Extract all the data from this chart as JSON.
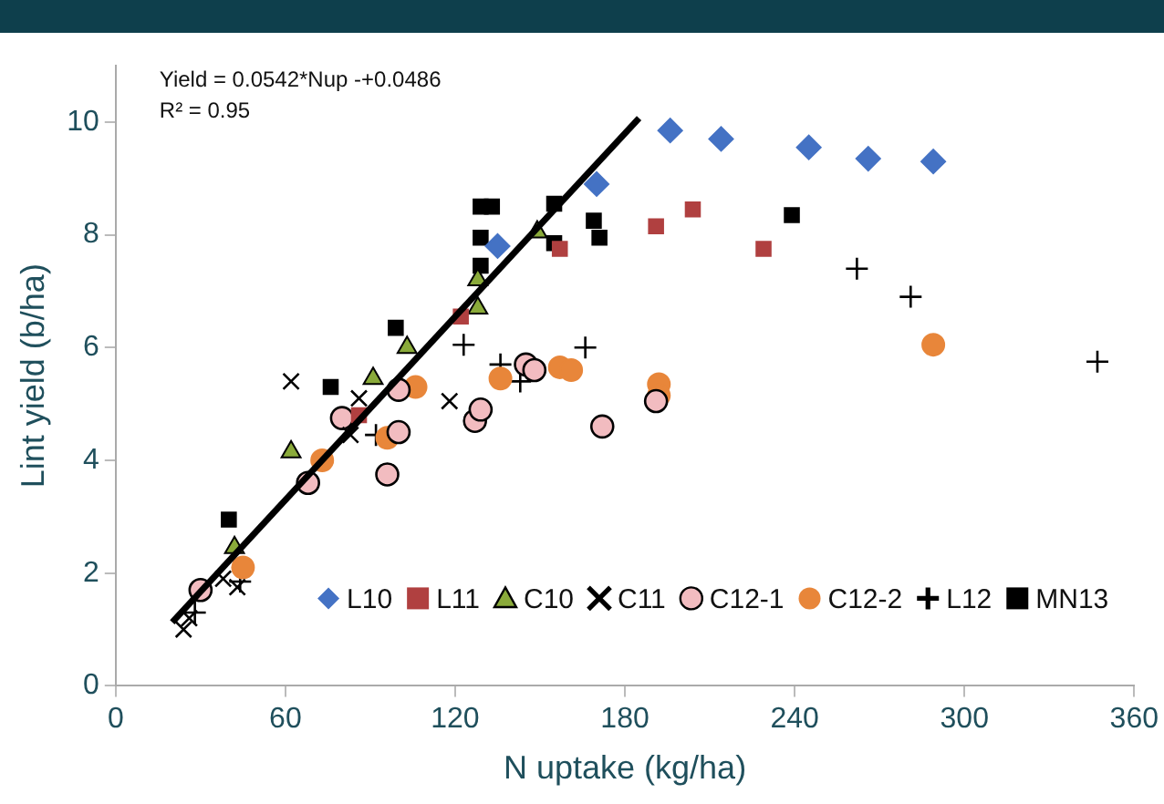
{
  "chart_data": {
    "type": "scatter",
    "xlabel": "N uptake (kg/ha)",
    "ylabel": "Lint yield (b/ha)",
    "xlim": [
      0,
      360
    ],
    "xticks": [
      0,
      60,
      120,
      180,
      240,
      300,
      360
    ],
    "ylim": [
      0,
      11
    ],
    "yticks": [
      0,
      2,
      4,
      6,
      8,
      10
    ],
    "grid": false,
    "legend": "bottom right",
    "annotations": [
      "Yield = 0.0542*Nup -+0.0486",
      "R² = 0.95"
    ],
    "series": [
      {
        "name": "L10",
        "color": "#4472c4",
        "marker": "diamond",
        "x": [
          135,
          170,
          196,
          214,
          245,
          266,
          289
        ],
        "values": [
          7.8,
          8.9,
          9.85,
          9.7,
          9.55,
          9.35,
          9.3
        ]
      },
      {
        "name": "L11",
        "color": "#b04040",
        "marker": "square",
        "x": [
          86,
          122,
          157,
          191,
          204,
          229
        ],
        "values": [
          4.8,
          6.55,
          7.75,
          8.15,
          8.45,
          7.75
        ]
      },
      {
        "name": "C10",
        "color": "#8aaa3a",
        "marker": "triangle",
        "x": [
          42,
          62,
          91,
          103,
          128,
          128,
          149
        ],
        "values": [
          2.45,
          4.15,
          5.45,
          6.0,
          6.7,
          7.2,
          8.05
        ]
      },
      {
        "name": "C11",
        "color": "#000000",
        "marker": "x",
        "x": [
          24,
          26,
          38,
          43,
          62,
          83,
          86,
          118
        ],
        "values": [
          1.0,
          1.2,
          1.9,
          1.75,
          5.4,
          4.45,
          5.1,
          5.05
        ]
      },
      {
        "name": "C12-1",
        "color": "#f2bcc0",
        "marker": "circle",
        "x": [
          30,
          68,
          80,
          96,
          100,
          100,
          127,
          129,
          145,
          148,
          172,
          191
        ],
        "values": [
          1.7,
          3.6,
          4.75,
          3.75,
          4.5,
          5.25,
          4.7,
          4.9,
          5.7,
          5.6,
          4.6,
          5.05
        ]
      },
      {
        "name": "C12-2",
        "color": "#e8863a",
        "marker": "circle",
        "x": [
          45,
          73,
          96,
          106,
          136,
          157,
          161,
          192,
          192,
          289
        ],
        "values": [
          2.1,
          4.0,
          4.4,
          5.3,
          5.45,
          5.65,
          5.6,
          5.35,
          5.15,
          6.05
        ]
      },
      {
        "name": "L12",
        "color": "#000000",
        "marker": "cross",
        "x": [
          28,
          44,
          92,
          123,
          136,
          143,
          166,
          262,
          281,
          347
        ],
        "values": [
          1.3,
          1.85,
          4.45,
          6.05,
          5.7,
          5.4,
          6.0,
          7.4,
          6.9,
          5.75
        ]
      },
      {
        "name": "MN13",
        "color": "#000000",
        "marker": "square",
        "x": [
          40,
          76,
          99,
          129,
          129,
          129,
          133,
          155,
          155,
          169,
          171,
          239
        ],
        "values": [
          2.95,
          5.3,
          6.35,
          8.5,
          7.95,
          7.45,
          8.5,
          8.55,
          7.85,
          8.25,
          7.95,
          8.35
        ]
      },
      {
        "type": "line",
        "color": "#000000",
        "x": [
          20,
          185
        ],
        "values": [
          1.13,
          10.07
        ]
      }
    ]
  }
}
